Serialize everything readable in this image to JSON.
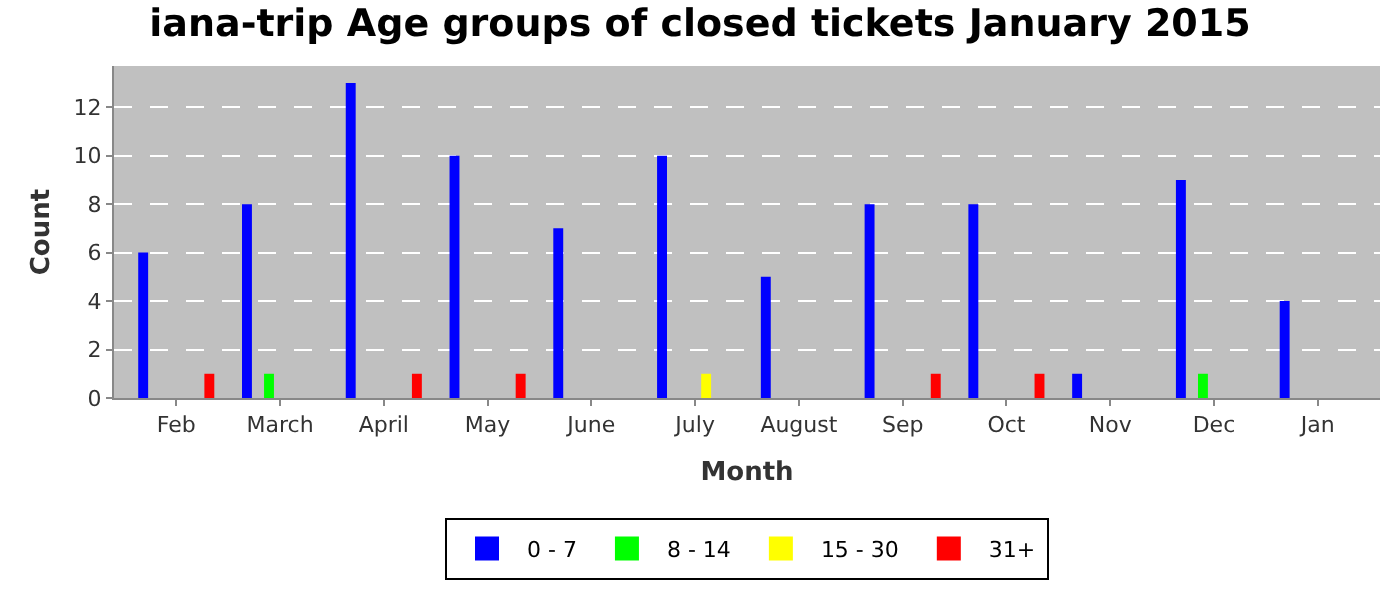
{
  "chart_data": {
    "type": "bar",
    "title": "iana-trip Age groups of closed tickets January 2015",
    "xlabel": "Month",
    "ylabel": "Count",
    "categories": [
      "Feb",
      "March",
      "April",
      "May",
      "June",
      "July",
      "August",
      "Sep",
      "Oct",
      "Nov",
      "Dec",
      "Jan"
    ],
    "series": [
      {
        "name": "0 - 7",
        "color": "#0000ff",
        "values": [
          6,
          8,
          13,
          10,
          7,
          10,
          5,
          8,
          8,
          1,
          9,
          4
        ]
      },
      {
        "name": "8 - 14",
        "color": "#00ff00",
        "values": [
          0,
          1,
          0,
          0,
          0,
          0,
          0,
          0,
          0,
          0,
          1,
          0
        ]
      },
      {
        "name": "15 - 30",
        "color": "#ffff00",
        "values": [
          0,
          0,
          0,
          0,
          0,
          1,
          0,
          0,
          0,
          0,
          0,
          0
        ]
      },
      {
        "name": "31+",
        "color": "#ff0000",
        "values": [
          1,
          0,
          1,
          1,
          0,
          0,
          0,
          1,
          1,
          0,
          0,
          0
        ]
      }
    ],
    "ylim": [
      0,
      13.7
    ],
    "yticks": [
      0,
      2,
      4,
      6,
      8,
      10,
      12
    ],
    "grid": "y",
    "legend": "bottom"
  }
}
